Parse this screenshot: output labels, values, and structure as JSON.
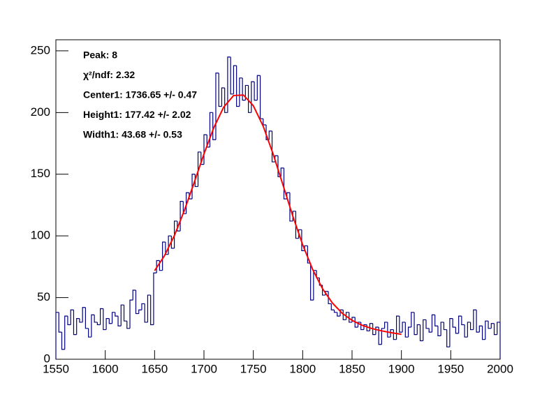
{
  "chart_data": {
    "type": "histogram",
    "color": "#000080",
    "bins": [
      1550,
      1553,
      1556,
      1559,
      1562,
      1565,
      1568,
      1571,
      1574,
      1577,
      1580,
      1583,
      1586,
      1589,
      1592,
      1595,
      1598,
      1601,
      1604,
      1607,
      1610,
      1613,
      1616,
      1619,
      1622,
      1625,
      1628,
      1631,
      1634,
      1637,
      1640,
      1643,
      1646,
      1649,
      1652,
      1655,
      1658,
      1661,
      1664,
      1667,
      1670,
      1673,
      1676,
      1679,
      1682,
      1685,
      1688,
      1691,
      1694,
      1697,
      1700,
      1703,
      1706,
      1709,
      1712,
      1715,
      1718,
      1721,
      1724,
      1727,
      1730,
      1733,
      1736,
      1739,
      1742,
      1745,
      1748,
      1751,
      1754,
      1757,
      1760,
      1763,
      1766,
      1769,
      1772,
      1775,
      1778,
      1781,
      1784,
      1787,
      1790,
      1793,
      1796,
      1799,
      1802,
      1805,
      1808,
      1811,
      1814,
      1817,
      1820,
      1823,
      1826,
      1829,
      1832,
      1835,
      1838,
      1841,
      1844,
      1847,
      1850,
      1853,
      1856,
      1859,
      1862,
      1865,
      1868,
      1871,
      1874,
      1877,
      1880,
      1883,
      1886,
      1889,
      1892,
      1895,
      1898,
      1901,
      1904,
      1907,
      1910,
      1913,
      1916,
      1919,
      1922,
      1925,
      1928,
      1931,
      1934,
      1937,
      1940,
      1943,
      1946,
      1949,
      1952,
      1955,
      1958,
      1961,
      1964,
      1967,
      1970,
      1973,
      1976,
      1979,
      1982,
      1985,
      1988,
      1991,
      1994,
      1997,
      2000
    ],
    "values": [
      38,
      22,
      8,
      35,
      28,
      40,
      20,
      33,
      30,
      42,
      25,
      18,
      36,
      30,
      28,
      41,
      24,
      33,
      29,
      38,
      35,
      27,
      44,
      31,
      25,
      48,
      56,
      37,
      40,
      45,
      30,
      52,
      28,
      70,
      80,
      72,
      95,
      85,
      100,
      90,
      112,
      104,
      128,
      118,
      135,
      130,
      150,
      140,
      168,
      158,
      182,
      172,
      200,
      178,
      232,
      205,
      220,
      200,
      245,
      215,
      238,
      205,
      228,
      210,
      222,
      200,
      225,
      210,
      230,
      195,
      190,
      178,
      185,
      160,
      165,
      148,
      155,
      130,
      135,
      112,
      120,
      98,
      105,
      88,
      92,
      78,
      48,
      72,
      66,
      60,
      52,
      55,
      45,
      40,
      38,
      35,
      40,
      32,
      38,
      30,
      34,
      26,
      30,
      24,
      28,
      23,
      29,
      20,
      26,
      12,
      25,
      30,
      18,
      24,
      16,
      35,
      22,
      30,
      18,
      26,
      38,
      20,
      28,
      15,
      32,
      25,
      22,
      36,
      27,
      19,
      30,
      24,
      10,
      33,
      26,
      21,
      35,
      28,
      18,
      30,
      24,
      40,
      22,
      27,
      16,
      31,
      25,
      29,
      20,
      30
    ],
    "fit": {
      "color": "#ff0000",
      "x": [
        1650,
        1660,
        1670,
        1680,
        1690,
        1700,
        1710,
        1720,
        1730,
        1740,
        1750,
        1760,
        1770,
        1780,
        1790,
        1800,
        1810,
        1820,
        1830,
        1840,
        1850,
        1860,
        1870,
        1880,
        1890,
        1900
      ],
      "values": [
        71.8,
        83.9,
        100.2,
        120.3,
        143,
        166.4,
        187.8,
        204.4,
        213.8,
        214.2,
        205.5,
        188.9,
        166.5,
        141.4,
        116,
        92.8,
        73,
        57.3,
        45.7,
        37.3,
        31.5,
        27.6,
        24.9,
        23,
        21.5,
        20.2
      ]
    },
    "xlim": [
      1550,
      2000
    ],
    "xticks": [
      1550,
      1600,
      1650,
      1700,
      1750,
      1800,
      1850,
      1900,
      1950,
      2000
    ],
    "ylim": [
      0,
      259
    ],
    "yticks": [
      0,
      50,
      100,
      150,
      200,
      250
    ],
    "annotations": [
      "Peak: 8",
      "χ²/ndf: 2.32",
      "Center1: 1736.65 +/- 0.47",
      "Height1: 177.42 +/- 2.02",
      "Width1: 43.68 +/- 0.53"
    ]
  }
}
